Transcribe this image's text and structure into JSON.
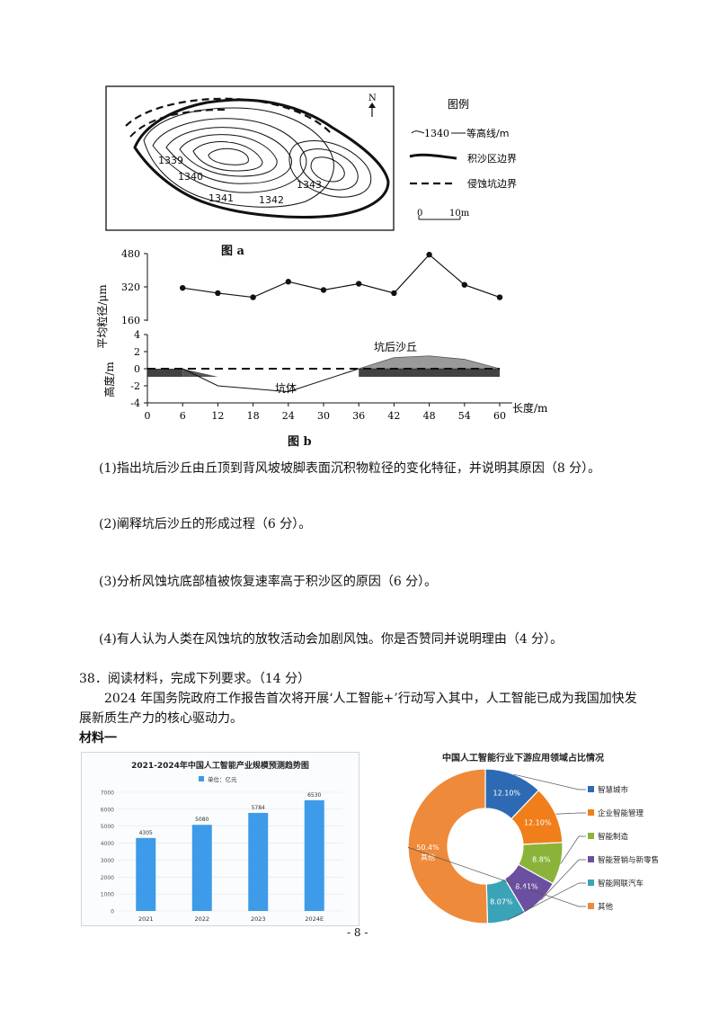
{
  "fig_a": {
    "caption": "图 a",
    "north": "N",
    "legend_title": "图例",
    "legend_contour_num": "1340",
    "legend_contour_label": "等高线/m",
    "legend_deposit_label": "积沙区边界",
    "legend_pit_label": "侵蚀坑边界",
    "scale_zero": "0",
    "scale_len": "10m",
    "contour_labels": [
      "1339",
      "1340",
      "1341",
      "1342",
      "1343"
    ]
  },
  "fig_b": {
    "caption": "图 b",
    "top_ylabel": "平均粒径/μm",
    "bottom_ylabel": "高度/m",
    "xlabel": "长度/m",
    "dune_label": "坑后沙丘",
    "pit_label": "坑体",
    "x_ticks": [
      "0",
      "6",
      "12",
      "18",
      "24",
      "30",
      "36",
      "42",
      "48",
      "54",
      "60"
    ],
    "grain_ticks": [
      "480",
      "320",
      "160"
    ],
    "height_ticks": [
      "4",
      "2",
      "0",
      "-2",
      "-4"
    ]
  },
  "chart_data": [
    {
      "type": "line",
      "ylabel": "平均粒径/μm",
      "xlabel": "长度/m",
      "x": [
        6,
        12,
        18,
        24,
        30,
        36,
        42,
        48,
        54,
        60
      ],
      "y": [
        315,
        290,
        270,
        345,
        305,
        335,
        290,
        475,
        330,
        270
      ],
      "xlim": [
        0,
        60
      ],
      "ylim": [
        160,
        480
      ]
    },
    {
      "type": "area",
      "ylabel": "高度/m",
      "xlabel": "长度/m",
      "x": [
        0,
        6,
        12,
        24,
        36,
        42,
        48,
        54,
        60
      ],
      "y": [
        0,
        0,
        -2,
        -2.7,
        0,
        1.3,
        1.5,
        1.1,
        0
      ],
      "xlim": [
        0,
        60
      ],
      "ylim": [
        -4,
        4
      ]
    },
    {
      "type": "bar",
      "title": "2021-2024年中国人工智能产业规模预测趋势图",
      "legend": "单位：亿元",
      "categories": [
        "2021",
        "2022",
        "2023",
        "2024E"
      ],
      "values": [
        4305,
        5080,
        5784,
        6530
      ],
      "ylim": [
        0,
        7000
      ],
      "y_ticks": [
        "7000",
        "6000",
        "5000",
        "4000",
        "3000",
        "2000",
        "1000",
        "0"
      ],
      "color": "#3d9be9"
    },
    {
      "type": "pie",
      "title": "中国人工智能行业下游应用领域占比情况",
      "labels": [
        "智慧城市",
        "企业智能管理",
        "智能制造",
        "智能营销与新零售",
        "智能网联汽车",
        "其他"
      ],
      "values": [
        12.1,
        12.1,
        8.8,
        8.41,
        8.07,
        50.4
      ],
      "value_labels": [
        "12.10%",
        "12.10%",
        "8.8%",
        "8.41%",
        "8.07%",
        "50.4%"
      ],
      "other_label": "其他",
      "colors": [
        "#2e6ab3",
        "#f07f1b",
        "#8bb33a",
        "#6b4fa0",
        "#3ba3b8",
        "#ee8a3a"
      ]
    }
  ],
  "questions": {
    "q1": "(1)指出坑后沙丘由丘顶到背风坡坡脚表面沉积物粒径的变化特征，并说明其原因（8 分）。",
    "q2": "(2)阐释坑后沙丘的形成过程（6 分）。",
    "q3": "(3)分析风蚀坑底部植被恢复速率高于积沙区的原因（6 分）。",
    "q4": "(4)有人认为人类在风蚀坑的放牧活动会加剧风蚀。你是否赞同并说明理由（4 分）。"
  },
  "q38": {
    "heading": "38．阅读材料，完成下列要求。（14 分）",
    "line1": "2024 年国务院政府工作报告首次将开展‘人工智能+’行动写入其中，人工智能已成为我国加快发",
    "line2": "展新质生产力的核心驱动力。",
    "material": "材料一"
  },
  "page_number": "- 8 -"
}
